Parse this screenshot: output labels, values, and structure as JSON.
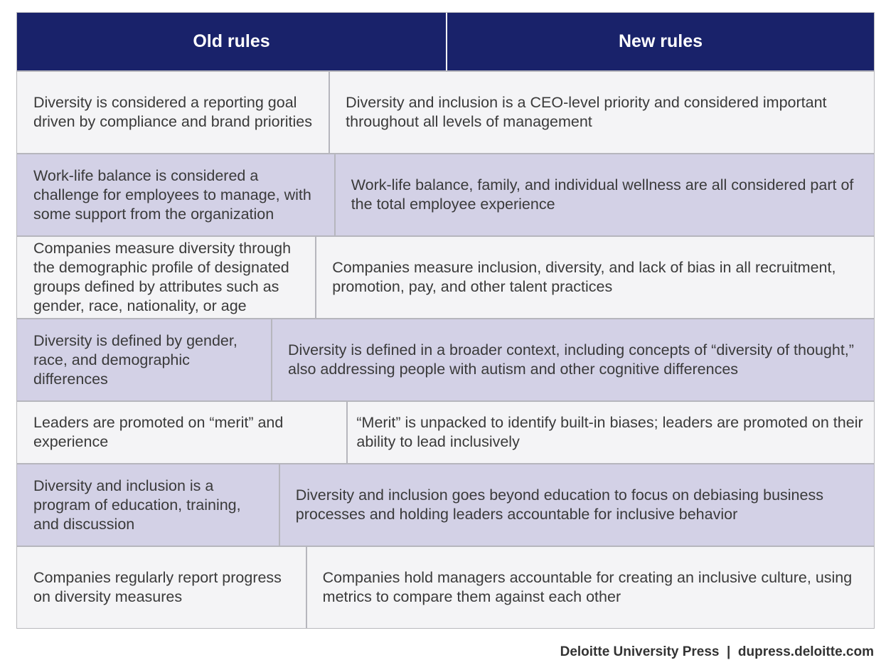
{
  "table": {
    "headers": {
      "old": "Old rules",
      "new": "New rules"
    },
    "rows": [
      {
        "old": "Diversity is considered a reporting goal driven by compliance and brand priorities",
        "new": "Diversity and inclusion is a CEO-level priority and considered important throughout all levels of management"
      },
      {
        "old": "Work-life balance is considered a challenge for employees to manage, with some support from the organization",
        "new": "Work-life balance, family, and individual wellness are all considered part of the total employee experience"
      },
      {
        "old": "Companies measure diversity through the demographic profile of designated groups defined by attributes such as gender, race, nationality, or age",
        "new": "Companies measure inclusion, diversity, and lack of bias in all recruitment, promotion, pay, and other talent practices"
      },
      {
        "old": "Diversity is defined by gender, race, and demographic differences",
        "new": "Diversity is defined in a broader context, including concepts of “diversity of thought,” also addressing people with autism and other cognitive differences"
      },
      {
        "old": "Leaders are promoted on “merit” and experience",
        "new": "“Merit” is unpacked to identify built-in biases; leaders are promoted on their ability to lead inclusively"
      },
      {
        "old": "Diversity and inclusion is a program of education, training, and discussion",
        "new": "Diversity and inclusion goes beyond education to focus on debiasing business processes and holding leaders accountable for inclusive behavior"
      },
      {
        "old": "Companies regularly report progress on diversity measures",
        "new": "Companies hold managers accountable for creating an inclusive culture, using metrics to compare them against each other"
      }
    ]
  },
  "footer": {
    "text": "Deloitte University Press  |  dupress.deloitte.com"
  },
  "colors": {
    "header_bg": "#19226a",
    "row_light": "#f4f4f6",
    "row_shaded": "#d3d1e6",
    "border": "#b6b6bd"
  }
}
